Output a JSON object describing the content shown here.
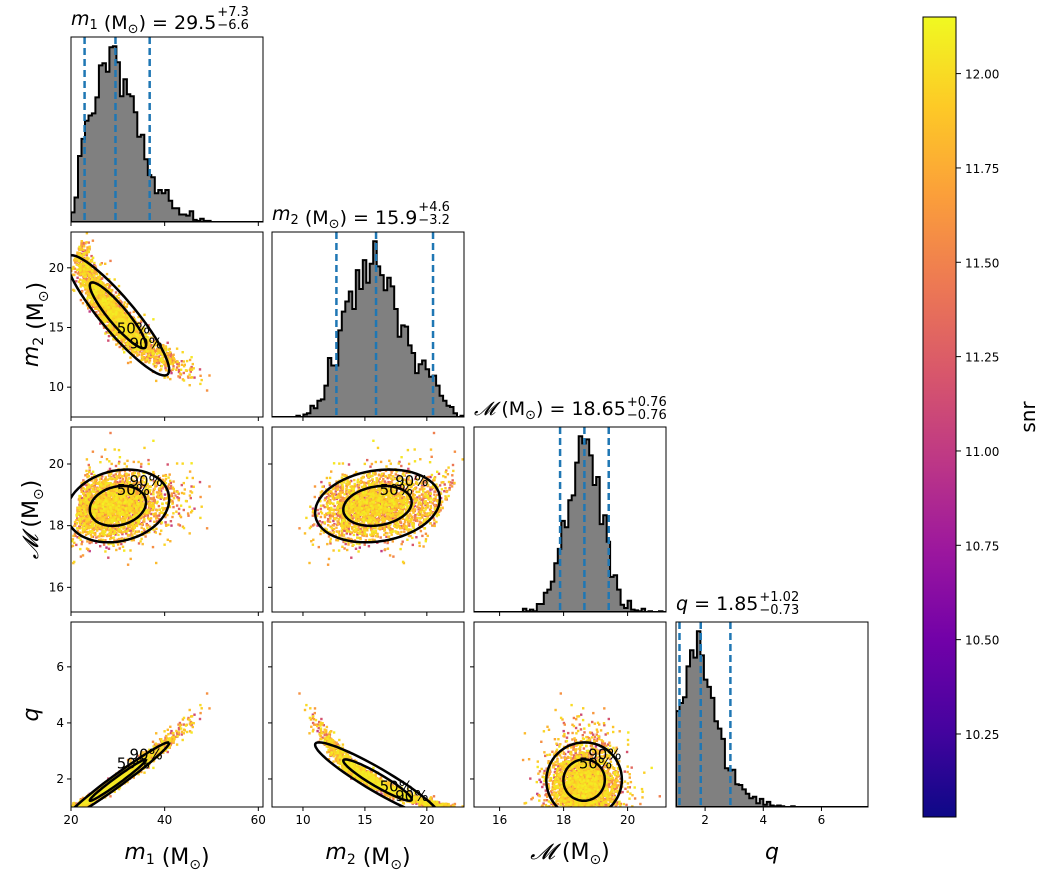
{
  "chart_data": {
    "type": "corner",
    "parameters": [
      {
        "key": "m1",
        "axis_label_sym": "m",
        "axis_label_sub": "1",
        "axis_label_unit": " (M",
        "axis_label_unit_sub": "⊙",
        "axis_label_close": ")",
        "title_value": "29.5",
        "title_plus": "+7.3",
        "title_minus": "−6.6",
        "range": [
          20,
          61
        ],
        "ticks": [
          20,
          40,
          60
        ],
        "quantiles": [
          22.9,
          29.5,
          36.8
        ]
      },
      {
        "key": "m2",
        "axis_label_sym": "m",
        "axis_label_sub": "2",
        "axis_label_unit": " (M",
        "axis_label_unit_sub": "⊙",
        "axis_label_close": ")",
        "title_value": "15.9",
        "title_plus": "+4.6",
        "title_minus": "−3.2",
        "range": [
          7.5,
          23
        ],
        "ticks": [
          10,
          15,
          20
        ],
        "quantiles": [
          12.7,
          15.9,
          20.5
        ]
      },
      {
        "key": "mc",
        "axis_label_sym": "𝓜",
        "axis_label_sub": "",
        "axis_label_unit": " (M",
        "axis_label_unit_sub": "⊙",
        "axis_label_close": ")",
        "title_value": "18.65",
        "title_plus": "+0.76",
        "title_minus": "−0.76",
        "range": [
          15.2,
          21.2
        ],
        "ticks": [
          16,
          18,
          20
        ],
        "quantiles": [
          17.89,
          18.65,
          19.41
        ]
      },
      {
        "key": "q",
        "axis_label_sym": "q",
        "axis_label_sub": "",
        "axis_label_unit": "",
        "axis_label_unit_sub": "",
        "axis_label_close": "",
        "title_value": "1.85",
        "title_plus": "+1.02",
        "title_minus": "−0.73",
        "range": [
          1.0,
          7.6
        ],
        "ticks": [
          2,
          4,
          6
        ],
        "quantiles": [
          1.12,
          1.85,
          2.87
        ]
      }
    ],
    "row_ticks": {
      "m2": [
        10,
        15,
        20
      ],
      "mc": [
        16,
        18,
        20
      ],
      "q": [
        2,
        4,
        6
      ]
    },
    "contour_labels": [
      "50%",
      "90%"
    ],
    "colorbar": {
      "label": "snr",
      "range": [
        10.03,
        12.15
      ],
      "ticks": [
        "10.25",
        "10.50",
        "10.75",
        "11.00",
        "11.25",
        "11.50",
        "11.75",
        "12.00"
      ],
      "tick_values": [
        10.25,
        10.5,
        10.75,
        11.0,
        11.25,
        11.5,
        11.75,
        12.0
      ],
      "colormap": "plasma",
      "colors": [
        "#0d0887",
        "#46039f",
        "#7201a8",
        "#9c179e",
        "#bd3786",
        "#d8576b",
        "#ed7953",
        "#fb9f3a",
        "#fdca26",
        "#f0f921"
      ]
    },
    "histogram_color": "#808080",
    "quantile_line_color": "#1f77b4"
  }
}
